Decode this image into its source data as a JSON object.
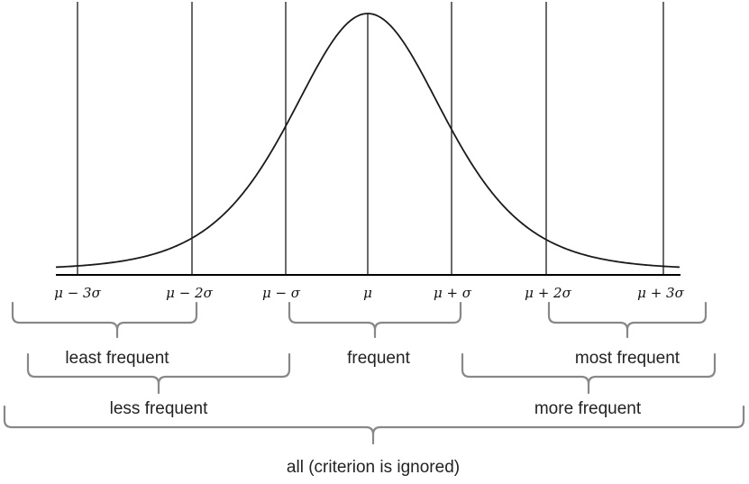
{
  "diagram": {
    "axis_labels": [
      "μ − 3σ",
      "μ − 2σ",
      "μ − σ",
      "μ",
      "μ + σ",
      "μ + 2σ",
      "μ + 3σ"
    ],
    "groups": {
      "least_frequent": "least frequent",
      "frequent": "frequent",
      "most_frequent": "most frequent",
      "less_frequent": "less frequent",
      "more_frequent": "more frequent",
      "all": "all (criterion is ignored)"
    },
    "colors": {
      "curve": "#1a1a1a",
      "brace": "#888888",
      "text": "#222222"
    }
  }
}
